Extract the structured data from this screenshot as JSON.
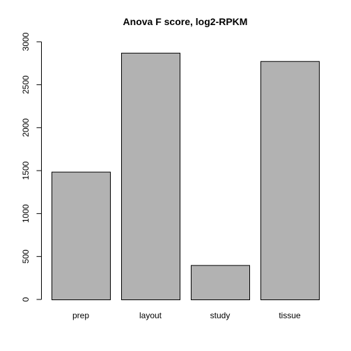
{
  "chart_data": {
    "type": "bar",
    "title": "Anova F score, log2-RPKM",
    "xlabel": "",
    "ylabel": "",
    "categories": [
      "prep",
      "layout",
      "study",
      "tissue"
    ],
    "values": [
      1487,
      2872,
      400,
      2775
    ],
    "ylim": [
      0,
      3000
    ],
    "yticks": [
      0,
      500,
      1000,
      1500,
      2000,
      2500,
      3000
    ],
    "ytick_labels": [
      "0",
      "500",
      "1000",
      "1500",
      "2000",
      "2500",
      "3000"
    ],
    "grid": false,
    "legend": "none",
    "colors": {
      "bar_fill": "#b2b2b2",
      "bar_stroke": "#000000"
    }
  }
}
